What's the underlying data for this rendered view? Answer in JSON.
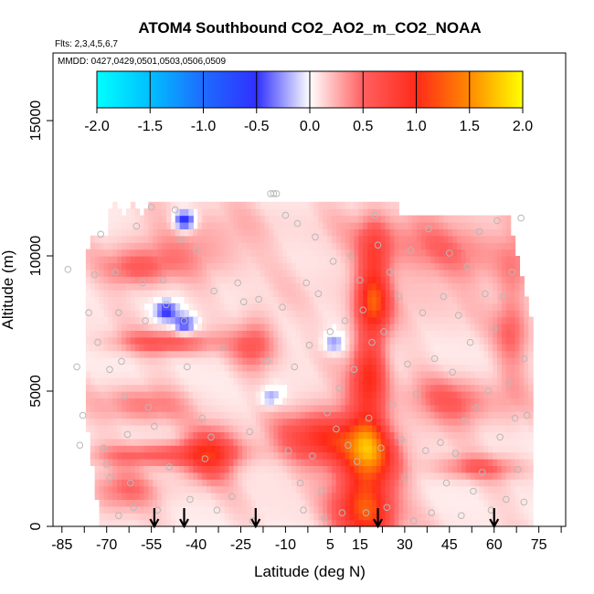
{
  "chart_data": {
    "type": "heatmap",
    "title": "ATOM4 Southbound CO2_AO2_m_CO2_NOAA",
    "flights_note": "Flts: 2,3,4,5,6,7",
    "dates_note": "MMDD: 0427,0429,0501,0503,0506,0509",
    "xlabel": "Latitude (deg N)",
    "ylabel": "Altitude (m)",
    "xlim": [
      -88,
      84
    ],
    "ylim": [
      0,
      17500
    ],
    "x_ticks": [
      -85,
      -70,
      -55,
      -40,
      -25,
      -10,
      5,
      15,
      30,
      45,
      60,
      75
    ],
    "x_tick_labels": [
      "-85",
      "-70",
      "-55",
      "-40",
      "-25",
      "-10",
      "5",
      "15",
      "30",
      "45",
      "60",
      "75"
    ],
    "y_ticks": [
      0,
      5000,
      10000,
      15000
    ],
    "y_tick_labels": [
      "0",
      "5000",
      "10000",
      "15000"
    ],
    "colorbar": {
      "range": [
        -2.0,
        2.0
      ],
      "ticks": [
        -2.0,
        -1.5,
        -1.0,
        -0.5,
        0.0,
        0.5,
        1.0,
        1.5,
        2.0
      ],
      "tick_labels": [
        "-2.0",
        "-1.5",
        "-1.0",
        "-0.5",
        "0.0",
        "0.5",
        "1.0",
        "1.5",
        "2.0"
      ],
      "colors": [
        "#00ffff",
        "#00bfff",
        "#1e6bff",
        "#3030ff",
        "#ffffff",
        "#ff6060",
        "#ff2a1a",
        "#ff8a00",
        "#ffff00"
      ]
    },
    "field_extent": {
      "lat": [
        -77,
        72
      ],
      "alt": [
        0,
        12000
      ]
    },
    "enhancements": [
      {
        "lat": 17,
        "alt": 1500,
        "value": 1.2,
        "lat_sd": 7,
        "alt_sd": 1600
      },
      {
        "lat": 18,
        "alt": 5500,
        "value": 0.75,
        "lat_sd": 4,
        "alt_sd": 2500
      },
      {
        "lat": 20,
        "alt": 9000,
        "value": 0.7,
        "lat_sd": 3.5,
        "alt_sd": 1400
      },
      {
        "lat": 3,
        "alt": 3300,
        "value": 0.75,
        "lat_sd": 10,
        "alt_sd": 800
      },
      {
        "lat": -35,
        "alt": 2700,
        "value": 0.85,
        "lat_sd": 6,
        "alt_sd": 600
      },
      {
        "lat": -48,
        "alt": 2700,
        "value": 0.6,
        "lat_sd": 16,
        "alt_sd": 300
      },
      {
        "lat": -50,
        "alt": 6800,
        "value": 0.45,
        "lat_sd": 12,
        "alt_sd": 300
      },
      {
        "lat": -20,
        "alt": 6900,
        "value": 0.45,
        "lat_sd": 5,
        "alt_sd": 700
      },
      {
        "lat": -60,
        "alt": 9500,
        "value": 0.4,
        "lat_sd": 8,
        "alt_sd": 500
      },
      {
        "lat": -40,
        "alt": 10500,
        "value": 0.3,
        "lat_sd": 14,
        "alt_sd": 700
      },
      {
        "lat": 45,
        "alt": 4500,
        "value": 0.4,
        "lat_sd": 10,
        "alt_sd": 700
      },
      {
        "lat": 40,
        "alt": 10200,
        "value": 0.3,
        "lat_sd": 20,
        "alt_sd": 1300
      },
      {
        "lat": 66,
        "alt": 7500,
        "value": 0.35,
        "lat_sd": 4,
        "alt_sd": 2000
      },
      {
        "lat": 55,
        "alt": 2200,
        "value": 0.35,
        "lat_sd": 10,
        "alt_sd": 300
      },
      {
        "lat": -65,
        "alt": 1200,
        "value": 0.4,
        "lat_sd": 8,
        "alt_sd": 500
      },
      {
        "lat": -58,
        "alt": 4500,
        "value": 0.3,
        "lat_sd": 10,
        "alt_sd": 500
      }
    ],
    "depletions": [
      {
        "lat": -44,
        "alt": 11300,
        "value": -0.3
      },
      {
        "lat": -50,
        "alt": 8000,
        "value": -0.25
      },
      {
        "lat": -44,
        "alt": 7500,
        "value": -0.2
      },
      {
        "lat": -15,
        "alt": 4800,
        "value": -0.15
      },
      {
        "lat": 6,
        "alt": 6800,
        "value": -0.15
      }
    ],
    "sample_points": [
      [
        -83,
        9500
      ],
      [
        -78,
        4100
      ],
      [
        -80,
        5900
      ],
      [
        -79,
        3000
      ],
      [
        -76,
        7900
      ],
      [
        -74,
        9300
      ],
      [
        -72,
        10800
      ],
      [
        -73,
        6800
      ],
      [
        -71,
        2900
      ],
      [
        -70,
        2300
      ],
      [
        -69,
        5800
      ],
      [
        -69,
        1800
      ],
      [
        -67,
        9400
      ],
      [
        -66,
        7900
      ],
      [
        -65,
        6100
      ],
      [
        -64,
        4800
      ],
      [
        -63,
        3400
      ],
      [
        -62,
        1600
      ],
      [
        -61,
        700
      ],
      [
        -66,
        400
      ],
      [
        -60,
        11100
      ],
      [
        -58,
        9000
      ],
      [
        -57,
        7600
      ],
      [
        -56,
        4400
      ],
      [
        -55,
        11800
      ],
      [
        -54,
        3700
      ],
      [
        -53,
        600
      ],
      [
        -51,
        9100
      ],
      [
        -50,
        8200
      ],
      [
        -49,
        2200
      ],
      [
        -47,
        11700
      ],
      [
        -45,
        10600
      ],
      [
        -44,
        7600
      ],
      [
        -43,
        5900
      ],
      [
        -42,
        1000
      ],
      [
        -40,
        10200
      ],
      [
        -38,
        4000
      ],
      [
        -37,
        2500
      ],
      [
        -35,
        3300
      ],
      [
        -34,
        8700
      ],
      [
        -33,
        600
      ],
      [
        -31,
        6600
      ],
      [
        -28,
        1100
      ],
      [
        -26,
        9000
      ],
      [
        -24,
        8300
      ],
      [
        -22,
        3500
      ],
      [
        -21,
        200
      ],
      [
        -19,
        8400
      ],
      [
        -16,
        6100
      ],
      [
        -15,
        12300
      ],
      [
        -14,
        12300
      ],
      [
        -13,
        12300
      ],
      [
        -11,
        8100
      ],
      [
        -10,
        11500
      ],
      [
        -9,
        2800
      ],
      [
        -7,
        5900
      ],
      [
        -6,
        11200
      ],
      [
        -5,
        1600
      ],
      [
        -4,
        600
      ],
      [
        -3,
        9000
      ],
      [
        -2,
        6700
      ],
      [
        -1,
        2600
      ],
      [
        0,
        10700
      ],
      [
        1,
        8600
      ],
      [
        2,
        1300
      ],
      [
        3,
        300
      ],
      [
        4,
        4200
      ],
      [
        5,
        7200
      ],
      [
        6,
        9800
      ],
      [
        7,
        3600
      ],
      [
        8,
        5100
      ],
      [
        9,
        500
      ],
      [
        10,
        7600
      ],
      [
        11,
        3000
      ],
      [
        12,
        10000
      ],
      [
        13,
        5800
      ],
      [
        14,
        2400
      ],
      [
        15,
        9100
      ],
      [
        16,
        8000
      ],
      [
        17,
        500
      ],
      [
        18,
        4000
      ],
      [
        19,
        6800
      ],
      [
        20,
        11500
      ],
      [
        21,
        10400
      ],
      [
        22,
        2900
      ],
      [
        23,
        7200
      ],
      [
        24,
        700
      ],
      [
        25,
        9400
      ],
      [
        26,
        4500
      ],
      [
        28,
        8500
      ],
      [
        29,
        3200
      ],
      [
        30,
        1800
      ],
      [
        31,
        6000
      ],
      [
        32,
        10200
      ],
      [
        33,
        200
      ],
      [
        34,
        4900
      ],
      [
        36,
        7900
      ],
      [
        37,
        2800
      ],
      [
        38,
        11000
      ],
      [
        39,
        500
      ],
      [
        40,
        6200
      ],
      [
        42,
        3100
      ],
      [
        43,
        8500
      ],
      [
        44,
        1600
      ],
      [
        45,
        10100
      ],
      [
        46,
        5700
      ],
      [
        47,
        2700
      ],
      [
        48,
        7800
      ],
      [
        49,
        400
      ],
      [
        50,
        3900
      ],
      [
        51,
        9600
      ],
      [
        52,
        6800
      ],
      [
        53,
        1300
      ],
      [
        54,
        4400
      ],
      [
        55,
        10900
      ],
      [
        56,
        2000
      ],
      [
        57,
        8600
      ],
      [
        58,
        5000
      ],
      [
        59,
        600
      ],
      [
        60,
        7300
      ],
      [
        61,
        11300
      ],
      [
        62,
        3300
      ],
      [
        63,
        8500
      ],
      [
        64,
        1000
      ],
      [
        65,
        5300
      ],
      [
        66,
        9400
      ],
      [
        67,
        4000
      ],
      [
        68,
        2100
      ],
      [
        69,
        11400
      ],
      [
        70,
        6200
      ],
      [
        71,
        4100
      ],
      [
        70,
        900
      ]
    ],
    "flight_markers_lat": [
      -54,
      -44,
      -20,
      21,
      60
    ]
  }
}
